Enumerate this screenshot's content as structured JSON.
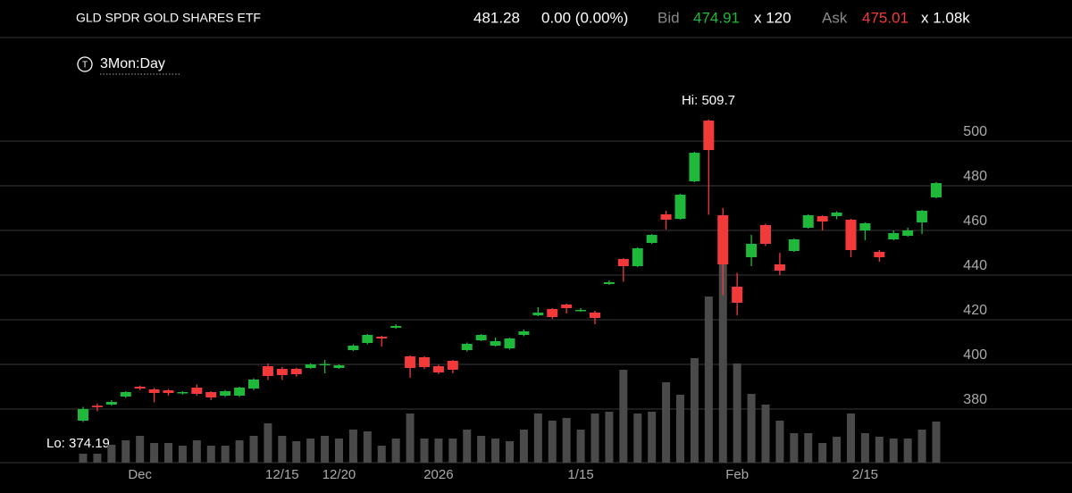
{
  "header": {
    "title": "GLD SPDR GOLD SHARES ETF",
    "last": "481.28",
    "change": "0.00 (0.00%)",
    "bid_label": "Bid",
    "bid": "474.91",
    "bid_size": "x 120",
    "ask_label": "Ask",
    "ask": "475.01",
    "ask_size": "x 1.08k"
  },
  "range": {
    "icon": "T",
    "label": "3Mon:Day"
  },
  "chart_data": {
    "type": "candlestick",
    "annotations": [
      "Hi: 509.7",
      "Lo: 374.19"
    ],
    "categories": [
      null,
      null,
      null,
      null,
      "Dec",
      null,
      null,
      null,
      null,
      null,
      null,
      null,
      null,
      null,
      "12/15",
      null,
      null,
      null,
      "12/20",
      null,
      null,
      null,
      null,
      null,
      null,
      "2026",
      null,
      null,
      null,
      null,
      null,
      null,
      null,
      null,
      null,
      "1/15",
      null,
      null,
      null,
      null,
      null,
      null,
      null,
      null,
      null,
      null,
      "Feb",
      null,
      null,
      null,
      null,
      null,
      null,
      null,
      null,
      "2/15",
      null,
      null,
      null,
      null,
      null
    ],
    "open": [
      374.8,
      381.5,
      382,
      385.6,
      390,
      388.8,
      388.4,
      387.2,
      389.6,
      387.6,
      386,
      386,
      389.2,
      399.2,
      398,
      398,
      398.4,
      400,
      398.4,
      406.4,
      409.6,
      412.4,
      416.4,
      403.6,
      403.2,
      399.2,
      401.6,
      406.4,
      410.8,
      408.4,
      407.2,
      413.2,
      422,
      424.8,
      426.8,
      424,
      423.2,
      436,
      447.2,
      444,
      454.4,
      467.2,
      465.2,
      482,
      509.2,
      466.8,
      434.8,
      448,
      462.4,
      444.8,
      450.8,
      461.2,
      466.4,
      466.4,
      464.8,
      460,
      450.4,
      456,
      457.6,
      463.6,
      474.8
    ],
    "high": [
      381,
      382.5,
      384,
      388,
      390.5,
      389.5,
      389,
      388,
      391,
      388,
      388.5,
      390,
      393.8,
      400.4,
      398.8,
      398.5,
      400.5,
      402,
      400,
      409,
      413.6,
      412.8,
      418,
      404,
      403.6,
      399.8,
      402,
      409.8,
      413.6,
      412,
      412,
      415.6,
      425.6,
      425.2,
      427.2,
      425.2,
      424,
      437.6,
      447.6,
      452.4,
      458.4,
      468.8,
      476.4,
      495.2,
      509.7,
      470,
      441,
      458,
      463,
      450,
      456.4,
      467.2,
      466.8,
      468.6,
      465.2,
      463.6,
      451.2,
      460,
      461.2,
      469.2,
      481.6
    ],
    "low": [
      374.19,
      379,
      381.5,
      385,
      388.5,
      383,
      386,
      386.5,
      386,
      384,
      385.5,
      385.5,
      388.5,
      393,
      393,
      394.5,
      398,
      396,
      398,
      406,
      409,
      408,
      416,
      394,
      398,
      395.6,
      396,
      405.8,
      410.4,
      408,
      406.6,
      412.6,
      421.6,
      420.4,
      422.8,
      423.6,
      418,
      435.6,
      437,
      443.6,
      454,
      460.4,
      464.8,
      481.6,
      467,
      431,
      422,
      444,
      453,
      440,
      450.4,
      460.8,
      460,
      465,
      448,
      455.6,
      446,
      455.6,
      457.2,
      458.4,
      474.4
    ],
    "close": [
      380,
      380.8,
      383.2,
      387.6,
      389.2,
      387.2,
      387.2,
      387.6,
      386.8,
      385.2,
      388,
      389.6,
      393.2,
      394.8,
      395.2,
      395.6,
      400,
      400.2,
      399.6,
      408.4,
      413.2,
      411.6,
      417.2,
      398.4,
      398.8,
      396.4,
      397.6,
      409.2,
      413.2,
      410.4,
      411.6,
      414.8,
      423.2,
      421.2,
      425.2,
      424.4,
      420.8,
      436.8,
      444,
      452,
      458,
      464.8,
      476,
      494.8,
      496,
      444.8,
      427.6,
      454,
      454,
      442,
      456,
      466.8,
      464,
      468,
      451.2,
      463.2,
      448,
      458.8,
      460,
      468.8,
      481.2
    ],
    "volume": [
      10,
      10,
      20,
      25,
      30,
      22,
      22,
      19,
      25,
      19,
      19,
      25,
      30,
      44,
      30,
      24,
      27,
      30,
      27,
      37,
      35,
      19,
      27,
      55,
      27,
      27,
      27,
      37,
      30,
      27,
      24,
      37,
      55,
      47,
      50,
      37,
      55,
      57,
      104,
      55,
      57,
      90,
      76,
      117,
      186,
      230,
      111,
      77,
      65,
      47,
      33,
      33,
      22,
      29,
      55,
      33,
      29,
      27,
      27,
      37,
      46
    ],
    "up_color": "#1fb83a",
    "down_color": "#f23a3a",
    "volume_color": "#4a4a4a",
    "ylim": [
      356,
      522
    ],
    "yticks": [
      380,
      400,
      420,
      440,
      460,
      480,
      500
    ],
    "grid": true
  }
}
